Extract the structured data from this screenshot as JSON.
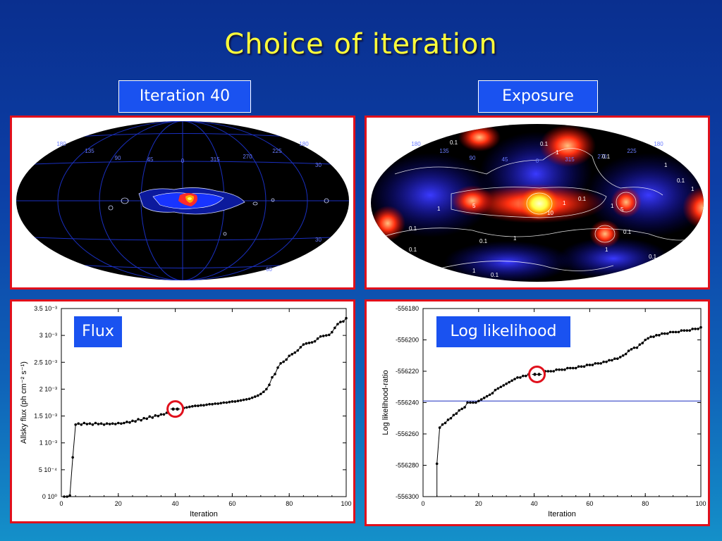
{
  "slide": {
    "title": "Choice of iteration"
  },
  "labels": {
    "map_left": "Iteration 40",
    "map_right": "Exposure",
    "flux": "Flux",
    "loglike": "Log likelihood"
  },
  "colors": {
    "frame": "#e0101c",
    "label_bg": "#1a52f0",
    "title": "#ffff3a"
  },
  "maps": {
    "left": {
      "grid_labels_top": [
        "180",
        "135",
        "90",
        "45",
        "0",
        "315",
        "270",
        "225",
        "180"
      ],
      "grid_labels_right": [
        "30",
        "30",
        "60"
      ]
    },
    "right": {
      "grid_labels_top": [
        "180",
        "135",
        "90",
        "45",
        "0",
        "315",
        "270",
        "225",
        "180"
      ],
      "contour_labels": [
        "0.1",
        "0.1",
        "1",
        "0.1",
        "0.1",
        "1",
        "5",
        "1",
        "10",
        "1",
        "0.1",
        "0.1",
        "1",
        "5",
        "1",
        "0.1",
        "0.1",
        "1",
        "0.1",
        "0.1",
        "1",
        "0.1",
        "0.1",
        "1"
      ]
    }
  },
  "chart_data": [
    {
      "type": "line",
      "ylabel": "Allsky flux (ph cm⁻² s⁻¹)",
      "xlabel": "Iteration",
      "xlim": [
        0,
        100
      ],
      "ylim": [
        0,
        0.0035
      ],
      "xticks": [
        "0",
        "20",
        "40",
        "60",
        "80",
        "100"
      ],
      "yticks": [
        "0 10⁰",
        "5 10⁻⁴",
        "1 10⁻³",
        "1.5 10⁻³",
        "2 10⁻³",
        "2.5 10⁻³",
        "3 10⁻³",
        "3.5 10⁻³"
      ],
      "highlight": {
        "x": 40,
        "y": 0.00163
      },
      "series": [
        {
          "x": [
            1,
            2,
            3,
            4,
            5,
            6,
            7,
            8,
            9,
            10,
            11,
            12,
            13,
            14,
            15,
            16,
            17,
            18,
            19,
            20,
            21,
            22,
            23,
            24,
            25,
            26,
            27,
            28,
            29,
            30,
            31,
            32,
            33,
            34,
            35,
            36,
            37,
            38,
            39,
            40,
            41,
            42,
            43,
            44,
            45,
            46,
            47,
            48,
            49,
            50,
            51,
            52,
            53,
            54,
            55,
            56,
            57,
            58,
            59,
            60,
            61,
            62,
            63,
            64,
            65,
            66,
            67,
            68,
            69,
            70,
            71,
            72,
            73,
            74,
            75,
            76,
            77,
            78,
            79,
            80,
            81,
            82,
            83,
            84,
            85,
            86,
            87,
            88,
            89,
            90,
            91,
            92,
            93,
            94,
            95,
            96,
            97,
            98,
            99,
            100
          ],
          "y": [
            0.0,
            0.0,
            2e-05,
            0.00073,
            0.00134,
            0.00136,
            0.00134,
            0.00137,
            0.00135,
            0.00136,
            0.00134,
            0.00137,
            0.00135,
            0.00136,
            0.00134,
            0.00136,
            0.00135,
            0.00136,
            0.00135,
            0.00137,
            0.00136,
            0.00137,
            0.00139,
            0.00138,
            0.00141,
            0.0014,
            0.00144,
            0.00142,
            0.00146,
            0.00145,
            0.00149,
            0.00147,
            0.00151,
            0.0015,
            0.00153,
            0.00153,
            0.00156,
            0.00157,
            0.00159,
            0.00163,
            0.00162,
            0.00164,
            0.00165,
            0.00166,
            0.00167,
            0.00168,
            0.00169,
            0.00169,
            0.0017,
            0.0017,
            0.00171,
            0.00172,
            0.00172,
            0.00173,
            0.00173,
            0.00174,
            0.00175,
            0.00175,
            0.00176,
            0.00177,
            0.00177,
            0.00178,
            0.00179,
            0.0018,
            0.00181,
            0.00182,
            0.00184,
            0.00186,
            0.00188,
            0.00191,
            0.00195,
            0.002,
            0.00208,
            0.00222,
            0.00228,
            0.0024,
            0.00248,
            0.00251,
            0.00255,
            0.00262,
            0.00265,
            0.00268,
            0.00272,
            0.00278,
            0.00283,
            0.00285,
            0.00286,
            0.00287,
            0.00289,
            0.00294,
            0.00298,
            0.00299,
            0.003,
            0.00301,
            0.00306,
            0.00314,
            0.00321,
            0.00325,
            0.00326,
            0.00332
          ]
        }
      ]
    },
    {
      "type": "line",
      "ylabel": "Log likelihood-ratio",
      "xlabel": "Iteration",
      "xlim": [
        0,
        100
      ],
      "ylim": [
        -556300,
        -556180
      ],
      "xticks": [
        "0",
        "20",
        "40",
        "60",
        "80",
        "100"
      ],
      "yticks": [
        "-556300",
        "-556280",
        "-556260",
        "-556240",
        "-556220",
        "-556200",
        "-556180"
      ],
      "hline": -556239,
      "highlight": {
        "x": 41,
        "y": -556222
      },
      "series": [
        {
          "x": [
            5,
            6,
            7,
            8,
            9,
            10,
            11,
            12,
            13,
            14,
            15,
            16,
            17,
            18,
            19,
            20,
            21,
            22,
            23,
            24,
            25,
            26,
            27,
            28,
            29,
            30,
            31,
            32,
            33,
            34,
            35,
            36,
            37,
            38,
            39,
            40,
            41,
            42,
            43,
            44,
            45,
            46,
            47,
            48,
            49,
            50,
            51,
            52,
            53,
            54,
            55,
            56,
            57,
            58,
            59,
            60,
            61,
            62,
            63,
            64,
            65,
            66,
            67,
            68,
            69,
            70,
            71,
            72,
            73,
            74,
            75,
            76,
            77,
            78,
            79,
            80,
            81,
            82,
            83,
            84,
            85,
            86,
            87,
            88,
            89,
            90,
            91,
            92,
            93,
            94,
            95,
            96,
            97,
            98,
            99,
            100
          ],
          "y": [
            -556279,
            -556256,
            -556254,
            -556253,
            -556251,
            -556250,
            -556248,
            -556247,
            -556245,
            -556244,
            -556243,
            -556240,
            -556240,
            -556240,
            -556240,
            -556239,
            -556238,
            -556237,
            -556236,
            -556235,
            -556234,
            -556232,
            -556231,
            -556230,
            -556229,
            -556228,
            -556227,
            -556226,
            -556225,
            -556224,
            -556224,
            -556223,
            -556223,
            -556222,
            -556222,
            -556222,
            -556222,
            -556221,
            -556221,
            -556220,
            -556220,
            -556220,
            -556220,
            -556219,
            -556219,
            -556219,
            -556219,
            -556218,
            -556218,
            -556218,
            -556218,
            -556217,
            -556217,
            -556217,
            -556216,
            -556216,
            -556216,
            -556215,
            -556215,
            -556215,
            -556214,
            -556214,
            -556213,
            -556213,
            -556212,
            -556212,
            -556211,
            -556210,
            -556209,
            -556207,
            -556206,
            -556205,
            -556205,
            -556203,
            -556202,
            -556200,
            -556199,
            -556198,
            -556198,
            -556197,
            -556197,
            -556196,
            -556196,
            -556196,
            -556195,
            -556195,
            -556195,
            -556195,
            -556194,
            -556194,
            -556194,
            -556194,
            -556193,
            -556193,
            -556193,
            -556192
          ]
        }
      ]
    }
  ]
}
